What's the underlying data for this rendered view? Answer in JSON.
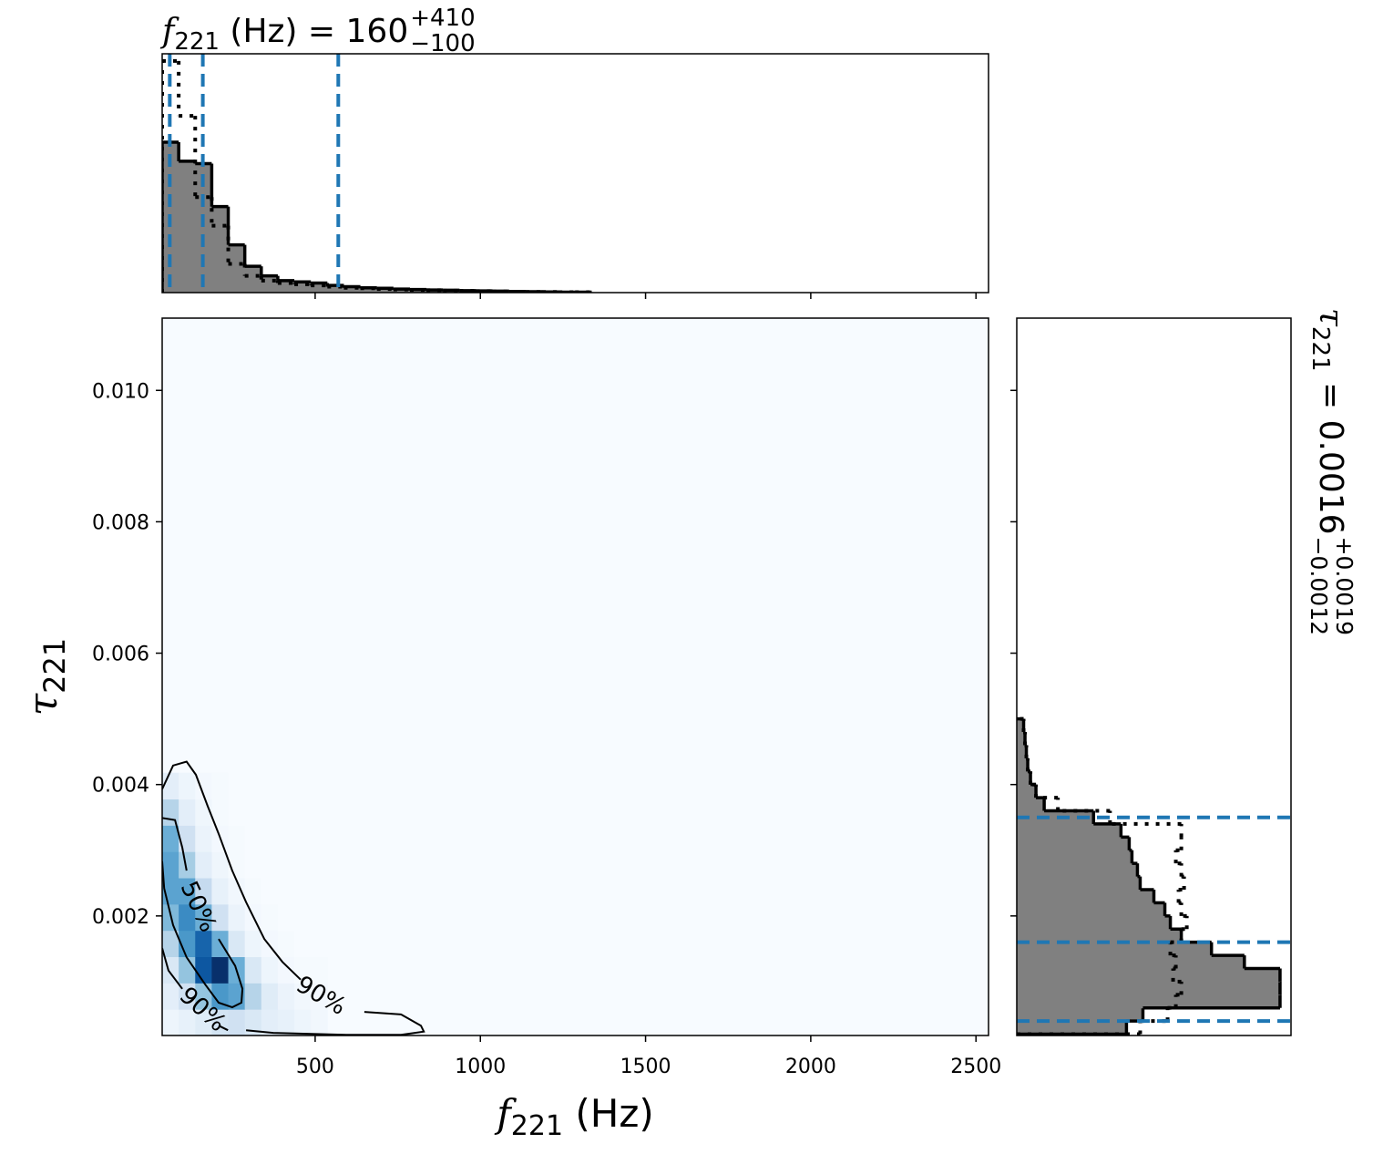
{
  "chart_data": [
    {
      "type": "histogram",
      "orientation": "vertical",
      "title_symbol": "f",
      "title_subscript": "221",
      "title_text": " (Hz) = 160",
      "title_upper": "+410",
      "title_lower": "−100",
      "bins": [
        37,
        87,
        137,
        187,
        237,
        287,
        337,
        387,
        437,
        487,
        537,
        587,
        637,
        687,
        737,
        787,
        837,
        887,
        937,
        987,
        1037,
        1087,
        1137,
        1187,
        1237,
        1287,
        1337
      ],
      "series": [
        {
          "style": "solid",
          "color": "#808080",
          "edgecolor": "#000000",
          "values": [
            0.63,
            0.55,
            0.54,
            0.36,
            0.2,
            0.11,
            0.07,
            0.05,
            0.045,
            0.04,
            0.03,
            0.025,
            0.02,
            0.018,
            0.015,
            0.013,
            0.011,
            0.01,
            0.008,
            0.007,
            0.006,
            0.005,
            0.004,
            0.003,
            0.002,
            0.002
          ]
        },
        {
          "style": "dotted",
          "edgecolor": "#000000",
          "values": [
            0.97,
            0.74,
            0.4,
            0.28,
            0.12,
            0.07,
            0.05,
            0.04,
            0.035,
            0.03,
            0.025,
            0.02,
            0.018,
            0.015,
            0.013,
            0.011,
            0.01,
            0.008,
            0.007,
            0.006,
            0.005,
            0.004,
            0.003,
            0.003,
            0.002,
            0.002
          ]
        }
      ],
      "quantiles": [
        60,
        160,
        570
      ],
      "quantile_color": "#1f77b4",
      "xlim": [
        37,
        2538
      ],
      "ylim": [
        0,
        1
      ],
      "xticks": [
        500,
        1000,
        1500,
        2000,
        2500
      ]
    },
    {
      "type": "heatmap",
      "colormap": "Blues",
      "x_label_symbol": "f",
      "x_label_subscript": "221",
      "x_label_text": " (Hz)",
      "y_label_symbol": "τ",
      "y_label_subscript": "221",
      "xlim": [
        37,
        2538
      ],
      "ylim": [
        0.00018,
        0.0111
      ],
      "xticks": [
        500,
        1000,
        1500,
        2000,
        2500
      ],
      "yticks": [
        0.002,
        0.004,
        0.006,
        0.008,
        {
          "value": 0.01,
          "label": "0.010"
        }
      ],
      "x_edges": [
        37,
        87,
        137,
        187,
        237,
        287,
        337,
        387,
        437,
        487,
        537
      ],
      "y_edges": [
        0.00018,
        0.00058,
        0.00098,
        0.00138,
        0.00178,
        0.00218,
        0.00258,
        0.00298,
        0.00338,
        0.00378,
        0.00418
      ],
      "values": [
        [
          0.05,
          0.08,
          0.12,
          0.18,
          0.2,
          0.15,
          0.1,
          0.08,
          0.05,
          0.03
        ],
        [
          0.1,
          0.2,
          0.4,
          0.6,
          0.55,
          0.3,
          0.12,
          0.06,
          0.03,
          0.02
        ],
        [
          0.15,
          0.4,
          0.85,
          1.0,
          0.5,
          0.15,
          0.05,
          0.02,
          0.01,
          0.01
        ],
        [
          0.3,
          0.6,
          0.8,
          0.5,
          0.15,
          0.05,
          0.02,
          0.01,
          0,
          0
        ],
        [
          0.45,
          0.65,
          0.5,
          0.2,
          0.06,
          0.02,
          0.01,
          0,
          0,
          0
        ],
        [
          0.55,
          0.55,
          0.25,
          0.08,
          0.03,
          0.01,
          0,
          0,
          0,
          0
        ],
        [
          0.55,
          0.35,
          0.1,
          0.04,
          0.01,
          0,
          0,
          0,
          0,
          0
        ],
        [
          0.5,
          0.2,
          0.06,
          0.02,
          0.01,
          0,
          0,
          0,
          0,
          0
        ],
        [
          0.3,
          0.1,
          0.04,
          0.01,
          0,
          0,
          0,
          0,
          0,
          0
        ],
        [
          0.1,
          0.05,
          0.02,
          0.01,
          0,
          0,
          0,
          0,
          0,
          0
        ]
      ],
      "contours": [
        {
          "label": "50%",
          "x": [
            37,
            76,
            98,
            111,
            null,
            208,
            258,
            280,
            277,
            249,
            208,
            167,
            111,
            70,
            43,
            37
          ],
          "y": [
            0.00349,
            0.00346,
            0.00304,
            0.00269,
            null,
            0.00165,
            0.00124,
            0.00089,
            0.00068,
            0.00061,
            0.00068,
            0.00096,
            0.00137,
            0.00186,
            0.00242,
            0.00283
          ]
        },
        {
          "label": "90%",
          "x": [
            37,
            70,
            111,
            139,
            175,
            208,
            249,
            291,
            346,
            401,
            456,
            null,
            649,
            760,
            820,
            829,
            760,
            594,
            373,
            291
          ],
          "y": [
            0.00393,
            0.00429,
            0.00435,
            0.00415,
            0.00367,
            0.00325,
            0.00269,
            0.00221,
            0.00165,
            0.0013,
            0.00103,
            null,
            0.00054,
            0.0005,
            0.00033,
            0.00024,
            0.00019,
            0.00019,
            0.00022,
            0.00026
          ]
        },
        {
          "label": "90%",
          "x": [
            37,
            56,
            98,
            null,
            208,
            236
          ],
          "y": [
            0.00151,
            0.00117,
            0.00089,
            null,
            0.00033,
            0.00026
          ]
        }
      ]
    },
    {
      "type": "histogram",
      "orientation": "horizontal",
      "title_symbol": "τ",
      "title_subscript": "221",
      "title_text": " = 0.0016",
      "title_upper": "+0.0019",
      "title_lower": "−0.0012",
      "bins": [
        0.0002,
        0.0004,
        0.0006,
        0.0008,
        0.001,
        0.0012,
        0.0014,
        0.0016,
        0.0018,
        0.002,
        0.0022,
        0.0024,
        0.0026,
        0.0028,
        0.003,
        0.0032,
        0.0034,
        0.0036,
        0.0038,
        0.004,
        0.0042,
        0.0044,
        0.0046,
        0.0048,
        0.005
      ],
      "series": [
        {
          "style": "solid",
          "color": "#808080",
          "edgecolor": "#000000",
          "values": [
            0.4,
            0.46,
            0.96,
            0.96,
            0.96,
            0.83,
            0.71,
            0.6,
            0.56,
            0.54,
            0.5,
            0.45,
            0.44,
            0.42,
            0.41,
            0.38,
            0.28,
            0.1,
            0.07,
            0.05,
            0.04,
            0.035,
            0.03,
            0.025
          ]
        },
        {
          "style": "dotted",
          "edgecolor": "#000000",
          "values": [
            0.45,
            0.55,
            0.58,
            0.6,
            0.57,
            0.58,
            0.56,
            0.6,
            0.62,
            0.6,
            0.59,
            0.61,
            0.6,
            0.58,
            0.6,
            0.6,
            0.34,
            0.15,
            0.07,
            0.05,
            0.04,
            0.035,
            0.03,
            0.025
          ]
        }
      ],
      "quantiles": [
        0.0004,
        0.0016,
        0.0035
      ],
      "quantile_color": "#1f77b4",
      "xlim": [
        0,
        1
      ],
      "ylim": [
        0.00018,
        0.0111
      ],
      "yticks": [
        0.002,
        0.004,
        0.006,
        0.008,
        {
          "value": 0.01,
          "label": "0.010"
        }
      ]
    }
  ]
}
